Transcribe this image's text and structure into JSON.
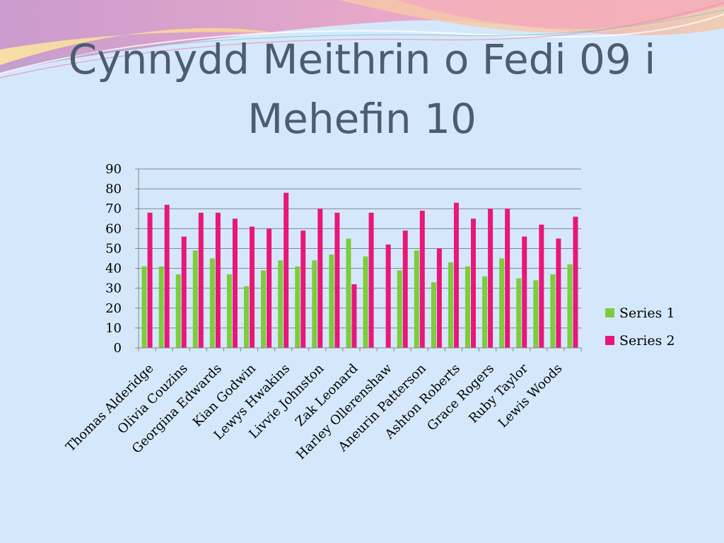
{
  "slide": {
    "title": "Cynnydd Meithrin o Fedi 09 i Mehefin 10"
  },
  "colors": {
    "background": "#d5e8fb",
    "series1": "#7dcc3c",
    "series2": "#e8177a",
    "title": "#4d5c70"
  },
  "chart_data": {
    "type": "bar",
    "title": "",
    "xlabel": "",
    "ylabel": "",
    "ylim": [
      0,
      90
    ],
    "yticks": [
      0,
      10,
      20,
      30,
      40,
      50,
      60,
      70,
      80,
      90
    ],
    "grid": true,
    "legend_position": "right",
    "categories": [
      "Thomas Alderidge",
      "",
      "Olivia Couzins",
      "",
      "Georgina Edwards",
      "",
      "Kian Godwin",
      "",
      "Lewys Hwakins",
      "",
      "Livvie Johnston",
      "",
      "Zak Leonard",
      "",
      "Harley Ollerenshaw",
      "",
      "Aneurin Patterson",
      "",
      "Ashton Roberts",
      "",
      "Grace Rogers",
      "",
      "Ruby Taylor",
      "",
      "Lewis Woods",
      ""
    ],
    "series": [
      {
        "name": "Series 1",
        "values": [
          41,
          41,
          37,
          49,
          45,
          37,
          31,
          39,
          44,
          41,
          44,
          47,
          55,
          46,
          0,
          39,
          49,
          33,
          43,
          41,
          36,
          45,
          35,
          34,
          37,
          42
        ]
      },
      {
        "name": "Series 2",
        "values": [
          68,
          72,
          56,
          68,
          68,
          65,
          61,
          60,
          78,
          59,
          70,
          68,
          32,
          68,
          52,
          59,
          69,
          50,
          73,
          65,
          70,
          70,
          56,
          62,
          55,
          66
        ]
      }
    ]
  }
}
